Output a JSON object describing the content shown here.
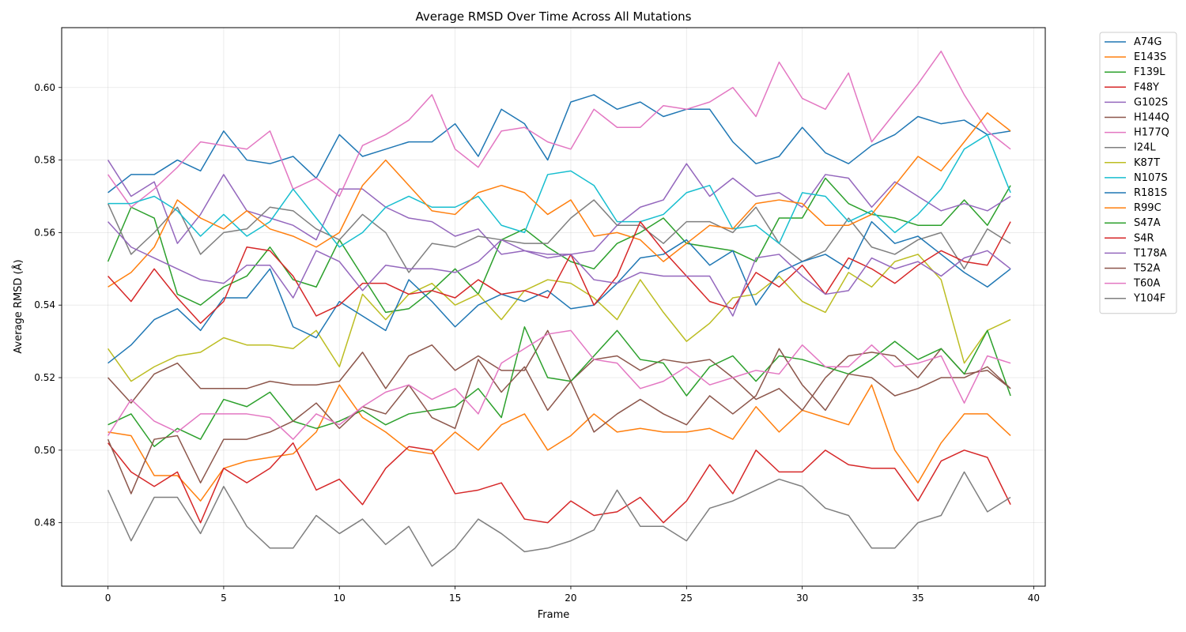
{
  "chart_data": {
    "type": "line",
    "title": "Average RMSD Over Time Across All Mutations",
    "xlabel": "Frame",
    "ylabel": "Average RMSD (Å)",
    "xlim": [
      -2,
      40.5
    ],
    "ylim": [
      0.4625,
      0.6165
    ],
    "xticks": [
      0,
      5,
      10,
      15,
      20,
      25,
      30,
      35,
      40
    ],
    "yticks": [
      0.48,
      0.5,
      0.52,
      0.54,
      0.56,
      0.58,
      0.6
    ],
    "grid": true,
    "legend_position": "outside-right",
    "x": [
      0,
      1,
      2,
      3,
      4,
      5,
      6,
      7,
      8,
      9,
      10,
      11,
      12,
      13,
      14,
      15,
      16,
      17,
      18,
      19,
      20,
      21,
      22,
      23,
      24,
      25,
      26,
      27,
      28,
      29,
      30,
      31,
      32,
      33,
      34,
      35,
      36,
      37,
      38,
      39
    ],
    "series": [
      {
        "name": "A74G",
        "color": "#1f77b4",
        "values": [
          0.571,
          0.576,
          0.576,
          0.58,
          0.577,
          0.588,
          0.58,
          0.579,
          0.581,
          0.575,
          0.587,
          0.581,
          0.583,
          0.585,
          0.585,
          0.59,
          0.581,
          0.594,
          0.59,
          0.58,
          0.596,
          0.598,
          0.594,
          0.596,
          0.592,
          0.594,
          0.594,
          0.585,
          0.579,
          0.581,
          0.589,
          0.582,
          0.579,
          0.584,
          0.587,
          0.592,
          0.59,
          0.591,
          0.587,
          0.588
        ]
      },
      {
        "name": "E143S",
        "color": "#ff7f0e",
        "values": [
          0.505,
          0.504,
          0.493,
          0.493,
          0.486,
          0.495,
          0.497,
          0.498,
          0.499,
          0.505,
          0.518,
          0.509,
          0.505,
          0.5,
          0.499,
          0.505,
          0.5,
          0.507,
          0.51,
          0.5,
          0.504,
          0.51,
          0.505,
          0.506,
          0.505,
          0.505,
          0.506,
          0.503,
          0.512,
          0.505,
          0.511,
          0.509,
          0.507,
          0.518,
          0.5,
          0.491,
          0.502,
          0.51,
          0.51,
          0.504
        ]
      },
      {
        "name": "F139L",
        "color": "#2ca02c",
        "values": [
          0.552,
          0.567,
          0.564,
          0.543,
          0.54,
          0.545,
          0.548,
          0.556,
          0.547,
          0.545,
          0.558,
          0.548,
          0.538,
          0.539,
          0.544,
          0.55,
          0.543,
          0.558,
          0.561,
          0.556,
          0.552,
          0.55,
          0.557,
          0.56,
          0.564,
          0.557,
          0.556,
          0.555,
          0.552,
          0.564,
          0.564,
          0.575,
          0.568,
          0.565,
          0.564,
          0.562,
          0.562,
          0.569,
          0.562,
          0.573
        ]
      },
      {
        "name": "F48Y",
        "color": "#d62728",
        "values": [
          0.502,
          0.494,
          0.49,
          0.494,
          0.48,
          0.495,
          0.491,
          0.495,
          0.502,
          0.489,
          0.492,
          0.485,
          0.495,
          0.501,
          0.5,
          0.488,
          0.489,
          0.491,
          0.481,
          0.48,
          0.486,
          0.482,
          0.483,
          0.487,
          0.48,
          0.486,
          0.496,
          0.488,
          0.5,
          0.494,
          0.494,
          0.5,
          0.496,
          0.495,
          0.495,
          0.486,
          0.497,
          0.5,
          0.498,
          0.485
        ]
      },
      {
        "name": "G102S",
        "color": "#9467bd",
        "values": [
          0.58,
          0.57,
          0.574,
          0.557,
          0.565,
          0.576,
          0.566,
          0.564,
          0.562,
          0.558,
          0.572,
          0.572,
          0.567,
          0.564,
          0.563,
          0.559,
          0.561,
          0.554,
          0.555,
          0.554,
          0.554,
          0.555,
          0.562,
          0.567,
          0.569,
          0.579,
          0.57,
          0.575,
          0.57,
          0.571,
          0.567,
          0.576,
          0.575,
          0.567,
          0.574,
          0.57,
          0.566,
          0.568,
          0.566,
          0.57
        ]
      },
      {
        "name": "H144Q",
        "color": "#8c564b",
        "values": [
          0.52,
          0.513,
          0.521,
          0.524,
          0.517,
          0.517,
          0.517,
          0.519,
          0.518,
          0.518,
          0.519,
          0.527,
          0.517,
          0.526,
          0.529,
          0.522,
          0.526,
          0.522,
          0.522,
          0.533,
          0.519,
          0.525,
          0.526,
          0.522,
          0.525,
          0.524,
          0.525,
          0.52,
          0.514,
          0.517,
          0.511,
          0.52,
          0.526,
          0.527,
          0.526,
          0.52,
          0.528,
          0.521,
          0.522,
          0.517
        ]
      },
      {
        "name": "H177Q",
        "color": "#e377c2",
        "values": [
          0.576,
          0.567,
          0.572,
          0.578,
          0.585,
          0.584,
          0.583,
          0.588,
          0.572,
          0.575,
          0.57,
          0.584,
          0.587,
          0.591,
          0.598,
          0.583,
          0.578,
          0.588,
          0.589,
          0.585,
          0.583,
          0.594,
          0.589,
          0.589,
          0.595,
          0.594,
          0.596,
          0.6,
          0.592,
          0.607,
          0.597,
          0.594,
          0.604,
          0.585,
          0.593,
          0.601,
          0.61,
          0.598,
          0.588,
          0.583
        ]
      },
      {
        "name": "I24L",
        "color": "#7f7f7f",
        "values": [
          0.568,
          0.554,
          0.56,
          0.567,
          0.554,
          0.56,
          0.561,
          0.567,
          0.566,
          0.561,
          0.558,
          0.565,
          0.56,
          0.549,
          0.557,
          0.556,
          0.559,
          0.558,
          0.557,
          0.557,
          0.564,
          0.569,
          0.562,
          0.562,
          0.557,
          0.563,
          0.563,
          0.56,
          0.567,
          0.557,
          0.552,
          0.555,
          0.564,
          0.556,
          0.554,
          0.558,
          0.56,
          0.55,
          0.561,
          0.557
        ]
      },
      {
        "name": "K87T",
        "color": "#bcbd22",
        "values": [
          0.528,
          0.519,
          0.523,
          0.526,
          0.527,
          0.531,
          0.529,
          0.529,
          0.528,
          0.533,
          0.523,
          0.543,
          0.536,
          0.543,
          0.546,
          0.54,
          0.543,
          0.536,
          0.544,
          0.547,
          0.546,
          0.542,
          0.536,
          0.547,
          0.538,
          0.53,
          0.535,
          0.542,
          0.543,
          0.548,
          0.541,
          0.538,
          0.549,
          0.545,
          0.552,
          0.554,
          0.547,
          0.524,
          0.533,
          0.536
        ]
      },
      {
        "name": "N107S",
        "color": "#17becf",
        "values": [
          0.568,
          0.568,
          0.57,
          0.566,
          0.559,
          0.565,
          0.559,
          0.563,
          0.572,
          0.564,
          0.556,
          0.56,
          0.567,
          0.57,
          0.567,
          0.567,
          0.57,
          0.562,
          0.56,
          0.576,
          0.577,
          0.573,
          0.563,
          0.563,
          0.565,
          0.571,
          0.573,
          0.561,
          0.562,
          0.557,
          0.571,
          0.57,
          0.563,
          0.566,
          0.56,
          0.565,
          0.572,
          0.583,
          0.587,
          0.571
        ]
      },
      {
        "name": "R181S",
        "color": "#1f77b4",
        "values": [
          0.524,
          0.529,
          0.536,
          0.539,
          0.533,
          0.542,
          0.542,
          0.55,
          0.534,
          0.531,
          0.541,
          0.537,
          0.533,
          0.547,
          0.541,
          0.534,
          0.54,
          0.543,
          0.541,
          0.544,
          0.539,
          0.54,
          0.546,
          0.553,
          0.554,
          0.558,
          0.551,
          0.555,
          0.54,
          0.549,
          0.552,
          0.554,
          0.55,
          0.563,
          0.557,
          0.559,
          0.554,
          0.549,
          0.545,
          0.55
        ]
      },
      {
        "name": "R99C",
        "color": "#ff7f0e",
        "values": [
          0.545,
          0.549,
          0.556,
          0.569,
          0.564,
          0.561,
          0.566,
          0.561,
          0.559,
          0.556,
          0.56,
          0.573,
          0.58,
          0.573,
          0.566,
          0.565,
          0.571,
          0.573,
          0.571,
          0.565,
          0.569,
          0.559,
          0.56,
          0.558,
          0.552,
          0.557,
          0.562,
          0.561,
          0.568,
          0.569,
          0.568,
          0.562,
          0.562,
          0.565,
          0.573,
          0.581,
          0.577,
          0.585,
          0.593,
          0.588
        ]
      },
      {
        "name": "S47A",
        "color": "#2ca02c",
        "values": [
          0.507,
          0.51,
          0.501,
          0.506,
          0.503,
          0.514,
          0.512,
          0.516,
          0.508,
          0.506,
          0.508,
          0.511,
          0.507,
          0.51,
          0.511,
          0.512,
          0.517,
          0.509,
          0.534,
          0.52,
          0.519,
          0.526,
          0.533,
          0.525,
          0.524,
          0.515,
          0.523,
          0.526,
          0.519,
          0.526,
          0.525,
          0.523,
          0.521,
          0.525,
          0.53,
          0.525,
          0.528,
          0.521,
          0.533,
          0.515
        ]
      },
      {
        "name": "S4R",
        "color": "#d62728",
        "values": [
          0.548,
          0.541,
          0.55,
          0.542,
          0.535,
          0.541,
          0.556,
          0.555,
          0.548,
          0.537,
          0.54,
          0.546,
          0.546,
          0.543,
          0.544,
          0.542,
          0.547,
          0.543,
          0.544,
          0.542,
          0.554,
          0.54,
          0.548,
          0.563,
          0.555,
          0.548,
          0.541,
          0.539,
          0.549,
          0.545,
          0.551,
          0.543,
          0.553,
          0.55,
          0.546,
          0.551,
          0.555,
          0.552,
          0.551,
          0.563
        ]
      },
      {
        "name": "T178A",
        "color": "#9467bd",
        "values": [
          0.563,
          0.556,
          0.553,
          0.55,
          0.547,
          0.546,
          0.551,
          0.551,
          0.542,
          0.555,
          0.552,
          0.544,
          0.551,
          0.55,
          0.55,
          0.549,
          0.552,
          0.558,
          0.555,
          0.553,
          0.554,
          0.547,
          0.546,
          0.549,
          0.548,
          0.548,
          0.548,
          0.537,
          0.553,
          0.554,
          0.548,
          0.543,
          0.544,
          0.553,
          0.55,
          0.552,
          0.548,
          0.553,
          0.555,
          0.55
        ]
      },
      {
        "name": "T52A",
        "color": "#8c564b",
        "values": [
          0.503,
          0.488,
          0.503,
          0.504,
          0.491,
          0.503,
          0.503,
          0.505,
          0.508,
          0.513,
          0.506,
          0.512,
          0.51,
          0.518,
          0.509,
          0.506,
          0.525,
          0.516,
          0.523,
          0.511,
          0.519,
          0.505,
          0.51,
          0.514,
          0.51,
          0.507,
          0.515,
          0.51,
          0.515,
          0.528,
          0.518,
          0.511,
          0.521,
          0.52,
          0.515,
          0.517,
          0.52,
          0.52,
          0.523,
          0.517
        ]
      },
      {
        "name": "T60A",
        "color": "#e377c2",
        "values": [
          0.504,
          0.514,
          0.508,
          0.505,
          0.51,
          0.51,
          0.51,
          0.509,
          0.503,
          0.51,
          0.507,
          0.512,
          0.516,
          0.518,
          0.514,
          0.517,
          0.51,
          0.524,
          0.528,
          0.532,
          0.533,
          0.525,
          0.524,
          0.517,
          0.519,
          0.523,
          0.518,
          0.52,
          0.522,
          0.521,
          0.529,
          0.523,
          0.523,
          0.529,
          0.523,
          0.524,
          0.526,
          0.513,
          0.526,
          0.524
        ]
      },
      {
        "name": "Y104F",
        "color": "#7f7f7f",
        "values": [
          0.489,
          0.475,
          0.487,
          0.487,
          0.477,
          0.49,
          0.479,
          0.473,
          0.473,
          0.482,
          0.477,
          0.481,
          0.474,
          0.479,
          0.468,
          0.473,
          0.481,
          0.477,
          0.472,
          0.473,
          0.475,
          0.478,
          0.489,
          0.479,
          0.479,
          0.475,
          0.484,
          0.486,
          0.489,
          0.492,
          0.49,
          0.484,
          0.482,
          0.473,
          0.473,
          0.48,
          0.482,
          0.494,
          0.483,
          0.487
        ]
      }
    ]
  }
}
